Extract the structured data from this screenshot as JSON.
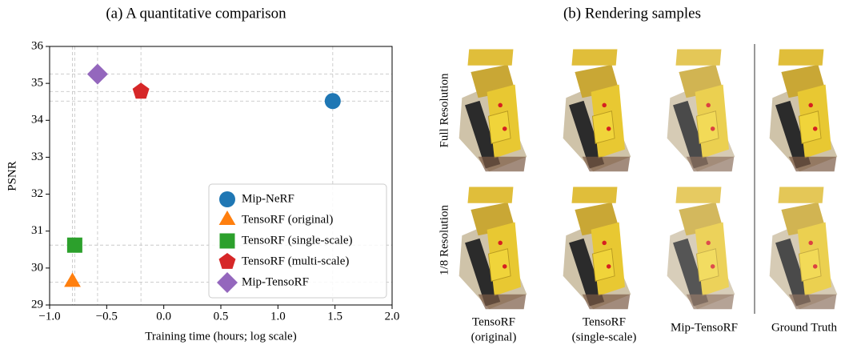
{
  "chart_data": {
    "type": "scatter",
    "title": "(a) A quantitative comparison",
    "xlabel": "Training time (hours; log scale)",
    "ylabel": "PSNR",
    "xlim": [
      -1,
      2
    ],
    "xticks": [
      {
        "value": -1,
        "label": "−1.0"
      },
      {
        "value": -0.5,
        "label": "−0.5"
      },
      {
        "value": 0,
        "label": "0.0"
      },
      {
        "value": 0.5,
        "label": "0.5"
      },
      {
        "value": 1,
        "label": "1.0"
      },
      {
        "value": 1.5,
        "label": "1.5"
      },
      {
        "value": 2,
        "label": "2.0"
      }
    ],
    "ylim": [
      29,
      36
    ],
    "yticks": [
      29,
      30,
      31,
      32,
      33,
      34,
      35,
      36
    ],
    "guide_lines": true,
    "legend": "lower right",
    "series": [
      {
        "name": "Mip-NeRF",
        "color": "#1f77b4",
        "marker": "circle",
        "x": [
          1.48
        ],
        "y": [
          34.52
        ]
      },
      {
        "name": "TensoRF (original)",
        "color": "#ff7f0e",
        "marker": "triangle",
        "x": [
          -0.8
        ],
        "y": [
          29.62
        ]
      },
      {
        "name": "TensoRF (single-scale)",
        "color": "#2ca02c",
        "marker": "square",
        "x": [
          -0.78
        ],
        "y": [
          30.62
        ]
      },
      {
        "name": "TensoRF (multi-scale)",
        "color": "#d62728",
        "marker": "pentagon",
        "x": [
          -0.2
        ],
        "y": [
          34.78
        ]
      },
      {
        "name": "Mip-TensoRF",
        "color": "#9467bd",
        "marker": "diamond",
        "x": [
          -0.58
        ],
        "y": [
          35.25
        ]
      }
    ]
  },
  "panel_b": {
    "title": "(b) Rendering samples",
    "row_labels": [
      "Full Resolution",
      "1/8 Resolution"
    ],
    "column_labels": [
      [
        "TensoRF",
        "(original)"
      ],
      [
        "TensoRF",
        "(single-scale)"
      ],
      [
        "Mip-TensoRF"
      ],
      [
        "Ground Truth"
      ]
    ]
  }
}
